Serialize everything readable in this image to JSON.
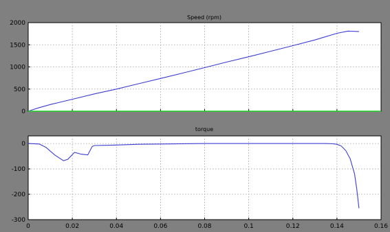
{
  "colors": {
    "figure_bg": "#808080",
    "axes_bg": "#ffffff",
    "grid": "#9a9a9a",
    "speed_line": "#3b3bd6",
    "reference_line": "#1fd11f",
    "torque_line": "#3b3bd6"
  },
  "chart_data": [
    {
      "type": "line",
      "title": "Speed (rpm)",
      "xlim": [
        0,
        0.16
      ],
      "ylim": [
        0,
        2000
      ],
      "x_ticks": [
        0,
        0.02,
        0.04,
        0.06,
        0.08,
        0.1,
        0.12,
        0.14,
        0.16
      ],
      "y_ticks": [
        0,
        500,
        1000,
        1500,
        2000
      ],
      "y_tick_labels": [
        "0",
        "500",
        "1000",
        "1500",
        "2000"
      ],
      "grid": true,
      "series": [
        {
          "role": "speed",
          "x": [
            0,
            0.005,
            0.01,
            0.015,
            0.02,
            0.03,
            0.04,
            0.05,
            0.06,
            0.07,
            0.08,
            0.09,
            0.1,
            0.11,
            0.12,
            0.13,
            0.14,
            0.145,
            0.15
          ],
          "y": [
            0,
            80,
            150,
            210,
            270,
            390,
            500,
            620,
            740,
            860,
            985,
            1110,
            1230,
            1355,
            1480,
            1610,
            1760,
            1810,
            1800
          ]
        },
        {
          "role": "reference",
          "x": [
            0,
            0.16
          ],
          "y": [
            0,
            0
          ]
        }
      ]
    },
    {
      "type": "line",
      "title": "torque",
      "xlim": [
        0,
        0.16
      ],
      "ylim": [
        -300,
        30
      ],
      "x_ticks": [
        0,
        0.02,
        0.04,
        0.06,
        0.08,
        0.1,
        0.12,
        0.14,
        0.16
      ],
      "x_tick_labels": [
        "0",
        "0.02",
        "0.04",
        "0.06",
        "0.08",
        "0.1",
        "0.12",
        "0.14",
        "0.16"
      ],
      "y_ticks": [
        0,
        -100,
        -200,
        -300
      ],
      "y_tick_labels": [
        "0",
        "-100",
        "-200",
        "-300"
      ],
      "grid": true,
      "series": [
        {
          "role": "torque",
          "x": [
            0,
            0.005,
            0.008,
            0.012,
            0.016,
            0.018,
            0.021,
            0.024,
            0.027,
            0.029,
            0.03,
            0.035,
            0.04,
            0.05,
            0.06,
            0.08,
            0.1,
            0.12,
            0.13,
            0.135,
            0.138,
            0.14,
            0.142,
            0.144,
            0.146,
            0.148,
            0.149,
            0.15
          ],
          "y": [
            0,
            -2,
            -15,
            -45,
            -68,
            -62,
            -35,
            -42,
            -45,
            -12,
            -8,
            -7,
            -6,
            -3,
            -2,
            0,
            0,
            0,
            0,
            0,
            -1,
            -3,
            -10,
            -28,
            -60,
            -120,
            -180,
            -255
          ]
        }
      ]
    }
  ]
}
